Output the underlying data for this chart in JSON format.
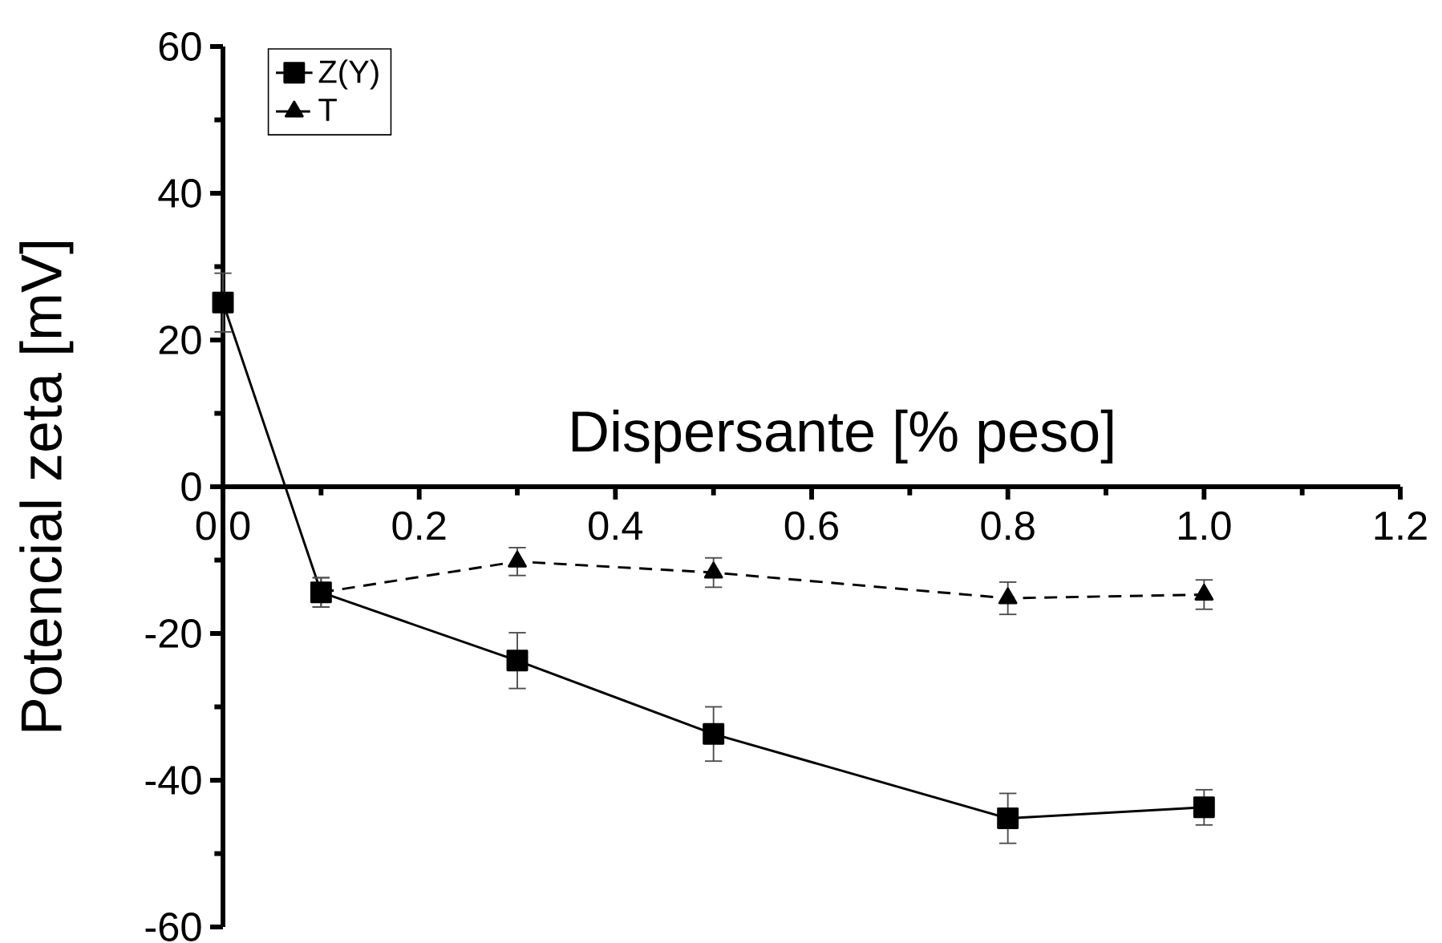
{
  "chart_data": {
    "type": "line",
    "xlabel": "Dispersante [% peso]",
    "ylabel": "Potencial zeta [mV]",
    "xlim": [
      0,
      1.2
    ],
    "ylim": [
      -60,
      60
    ],
    "xticks": [
      {
        "value": 0,
        "label": "0.0"
      },
      0.2,
      0.4,
      0.6,
      0.8,
      {
        "value": 1,
        "label": "1.0"
      },
      1.2
    ],
    "yticks": [
      -60,
      -40,
      -20,
      0,
      20,
      40,
      60
    ],
    "legend": "top left",
    "grid": false,
    "series": [
      {
        "name": "Z(Y)",
        "color": "#000000",
        "marker": "square",
        "line_style": "solid",
        "x": [
          0,
          0.1,
          0.3,
          0.5,
          0.8,
          1.0
        ],
        "values": [
          25.1,
          -14.4,
          -23.7,
          -33.7,
          -45.2,
          -43.7
        ],
        "errors": [
          4,
          2,
          3.8,
          3.7,
          3.4,
          2.4
        ]
      },
      {
        "name": "T",
        "color": "#000000",
        "marker": "triangle",
        "line_style": "dashed",
        "x": [
          0.1,
          0.3,
          0.5,
          0.8,
          1.0
        ],
        "values": [
          -14.4,
          -10.2,
          -11.7,
          -15.2,
          -14.7
        ],
        "errors": [
          2,
          1.9,
          2,
          2.2,
          2
        ]
      }
    ]
  }
}
